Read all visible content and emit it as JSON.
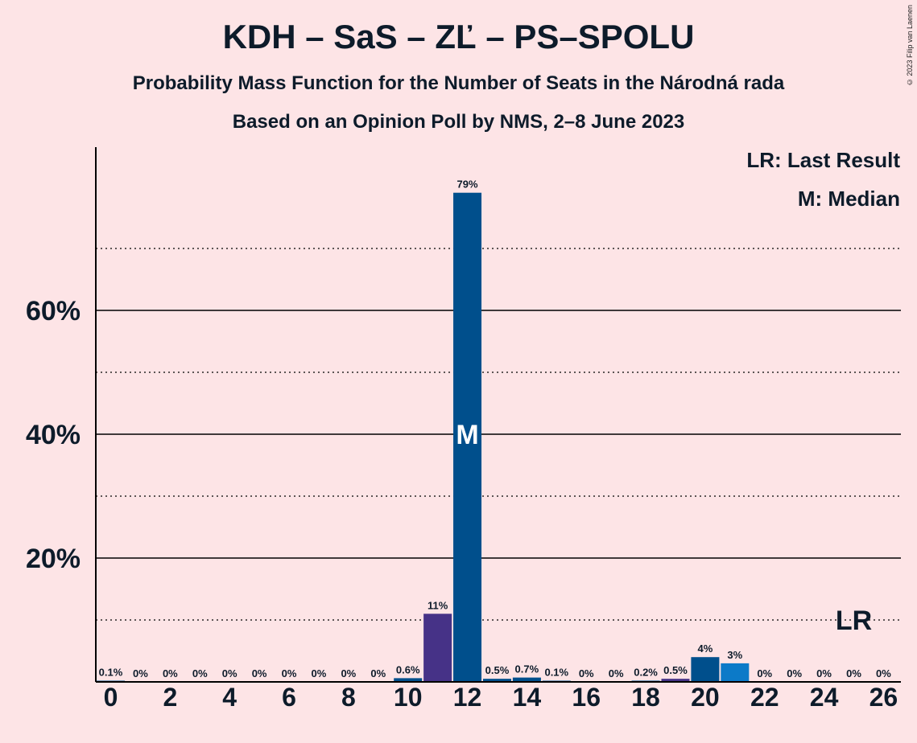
{
  "title": "KDH – SaS – ZĽ – PS–SPOLU",
  "subtitle": "Probability Mass Function for the Number of Seats in the Národná rada",
  "subtitle2": "Based on an Opinion Poll by NMS, 2–8 June 2023",
  "copyright": "© 2023 Filip van Laenen",
  "legend": {
    "last_result": "LR: Last Result",
    "median": "M: Median"
  },
  "colors": {
    "background": "#FDE4E6",
    "purple": "#463287",
    "dark_blue": "#004F8C",
    "light_blue": "#0C7AC8",
    "text": "#0d1b2a"
  },
  "chart_data": {
    "type": "bar",
    "x": [
      0,
      1,
      2,
      3,
      4,
      5,
      6,
      7,
      8,
      9,
      10,
      11,
      12,
      13,
      14,
      15,
      16,
      17,
      18,
      19,
      20,
      21,
      22,
      23,
      24,
      25,
      26
    ],
    "values": [
      0.1,
      0,
      0,
      0,
      0,
      0,
      0,
      0,
      0,
      0,
      0.6,
      11,
      79,
      0.5,
      0.7,
      0.1,
      0,
      0,
      0.2,
      0.5,
      4,
      3,
      0,
      0,
      0,
      0,
      0
    ],
    "labels": [
      "0.1%",
      "0%",
      "0%",
      "0%",
      "0%",
      "0%",
      "0%",
      "0%",
      "0%",
      "0%",
      "0.6%",
      "11%",
      "79%",
      "0.5%",
      "0.7%",
      "0.1%",
      "0%",
      "0%",
      "0.2%",
      "0.5%",
      "4%",
      "3%",
      "0%",
      "0%",
      "0%",
      "0%",
      "0%"
    ],
    "bar_colors": [
      "dark_blue",
      "dark_blue",
      "dark_blue",
      "dark_blue",
      "dark_blue",
      "dark_blue",
      "dark_blue",
      "dark_blue",
      "dark_blue",
      "dark_blue",
      "dark_blue",
      "purple",
      "dark_blue",
      "dark_blue",
      "dark_blue",
      "dark_blue",
      "dark_blue",
      "dark_blue",
      "dark_blue",
      "purple",
      "dark_blue",
      "light_blue",
      "dark_blue",
      "dark_blue",
      "dark_blue",
      "dark_blue",
      "dark_blue"
    ],
    "x_ticks": [
      "0",
      "2",
      "4",
      "6",
      "8",
      "10",
      "12",
      "14",
      "16",
      "18",
      "20",
      "22",
      "24",
      "26"
    ],
    "y_ticks": [
      "20%",
      "40%",
      "60%"
    ],
    "ylim": [
      0,
      86
    ],
    "median": 12,
    "median_marker": "M",
    "last_result": 25,
    "last_result_marker": "LR",
    "grid": true
  }
}
